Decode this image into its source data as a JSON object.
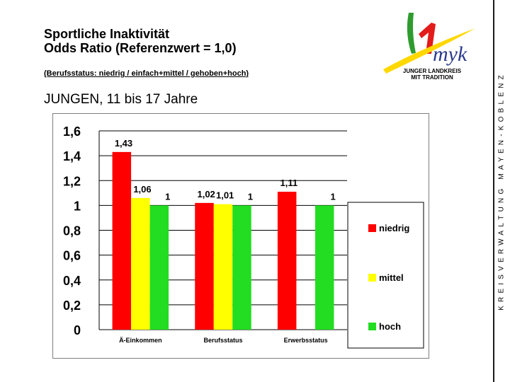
{
  "title_line1": "Sportliche Inaktivität",
  "title_line2": "Odds Ratio (Referenzwert = 1,0)",
  "legend_note": "(Berufsstatus: niedrig / einfach+mittel / gehoben+hoch)",
  "subtitle": "JUNGEN, 11 bis 17 Jahre",
  "side_text": "KREISVERWALTUNG MAYEN-KOBLENZ",
  "logo": {
    "word": "myk",
    "line1": "JUNGER LANDKREIS",
    "line2": "MIT TRADITION"
  },
  "colors": {
    "niedrig": "#ff0000",
    "mittel": "#ffff00",
    "hoch": "#22dd22"
  },
  "chart_data": {
    "type": "bar",
    "categories": [
      "Ä-Einkommen",
      "Berufsstatus",
      "Erwerbsstatus"
    ],
    "series": [
      {
        "name": "niedrig",
        "values": [
          1.43,
          1.02,
          1.11
        ],
        "labels": [
          "1,43",
          "1,02",
          "1,11"
        ]
      },
      {
        "name": "mittel",
        "values": [
          1.06,
          1.01,
          null
        ],
        "labels": [
          "1,06",
          "1,01",
          ""
        ]
      },
      {
        "name": "hoch",
        "values": [
          1,
          1,
          1
        ],
        "labels": [
          "1",
          "1",
          "1"
        ]
      }
    ],
    "ylim": [
      0,
      1.6
    ],
    "yticks": [
      {
        "value": 0,
        "label": "0"
      },
      {
        "value": 0.2,
        "label": "0,2"
      },
      {
        "value": 0.4,
        "label": "0,4"
      },
      {
        "value": 0.6,
        "label": "0,6"
      },
      {
        "value": 0.8,
        "label": "0,8"
      },
      {
        "value": 1,
        "label": "1"
      },
      {
        "value": 1.2,
        "label": "1,2"
      },
      {
        "value": 1.4,
        "label": "1,4"
      },
      {
        "value": 1.6,
        "label": "1,6"
      }
    ],
    "grid": true,
    "legend_position": "right"
  }
}
